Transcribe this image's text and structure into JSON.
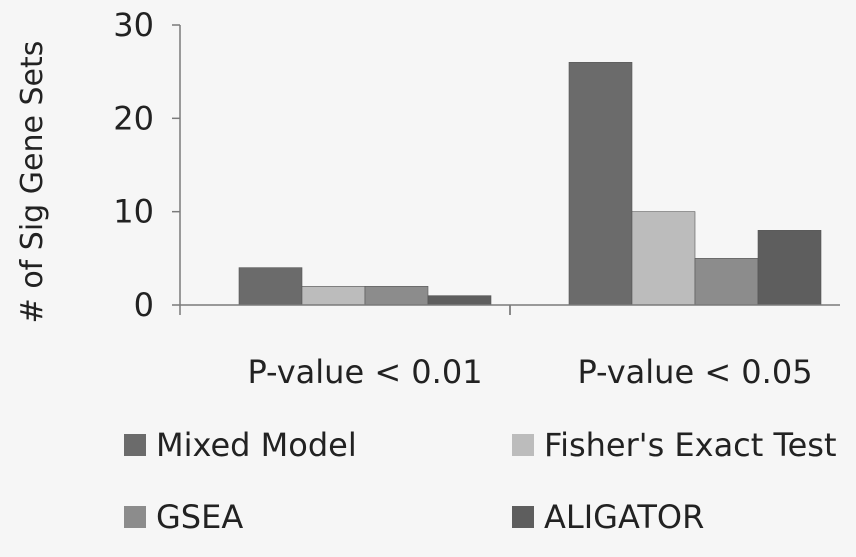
{
  "chart_data": {
    "type": "bar",
    "ylabel": "# of Sig Gene Sets",
    "xlabel": "",
    "ylim": [
      0,
      30
    ],
    "yticks": [
      0,
      10,
      20,
      30
    ],
    "grid": false,
    "legend_position": "bottom",
    "categories": [
      "P-value < 0.01",
      "P-value < 0.05"
    ],
    "series": [
      {
        "name": "Mixed Model",
        "values": [
          4,
          26
        ],
        "color": "#6b6b6b"
      },
      {
        "name": "Fisher's Exact Test",
        "values": [
          2,
          10
        ],
        "color": "#bcbcbc"
      },
      {
        "name": "GSEA",
        "values": [
          2,
          5
        ],
        "color": "#8c8c8c"
      },
      {
        "name": "ALIGATOR",
        "values": [
          1,
          8
        ],
        "color": "#5e5e5e"
      }
    ]
  }
}
